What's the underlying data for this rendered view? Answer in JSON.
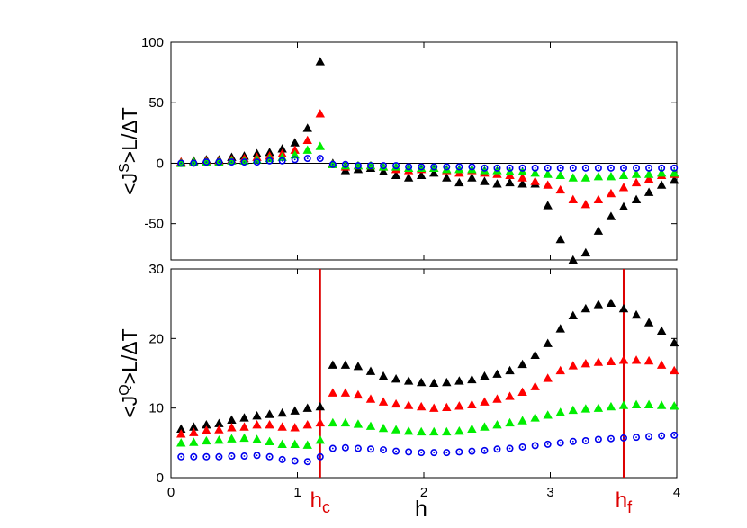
{
  "chart_data": [
    {
      "type": "scatter",
      "panel": "top",
      "ylabel_main": "<J",
      "ylabel_sup": "S",
      "ylabel_rest": ">L/ΔT",
      "xlim": [
        0,
        4
      ],
      "ylim": [
        -80,
        100
      ],
      "yticks": [
        100,
        50,
        0,
        -50
      ],
      "zero_line": true,
      "series": [
        {
          "marker": "triangle",
          "color": "#000000",
          "x": [
            0.08,
            0.18,
            0.28,
            0.38,
            0.48,
            0.58,
            0.68,
            0.78,
            0.88,
            0.98,
            1.08,
            1.18,
            1.28,
            1.38,
            1.48,
            1.58,
            1.68,
            1.78,
            1.88,
            1.98,
            2.08,
            2.18,
            2.28,
            2.38,
            2.48,
            2.58,
            2.68,
            2.78,
            2.88,
            2.98,
            3.08,
            3.18,
            3.28,
            3.38,
            3.48,
            3.58,
            3.68,
            3.78,
            3.88,
            3.98
          ],
          "y": [
            1,
            2,
            3,
            3,
            5,
            6,
            8,
            9,
            12,
            17,
            29,
            84,
            0,
            -6,
            -5,
            -4,
            -7,
            -10,
            -12,
            -10,
            -8,
            -12,
            -16,
            -12,
            -15,
            -17,
            -16,
            -17,
            -17,
            -35,
            -63,
            -80,
            -74,
            -56,
            -44,
            -36,
            -30,
            -24,
            -18,
            -14
          ]
        },
        {
          "marker": "triangle",
          "color": "#ff0000",
          "x": [
            0.08,
            0.18,
            0.28,
            0.38,
            0.48,
            0.58,
            0.68,
            0.78,
            0.88,
            0.98,
            1.08,
            1.18,
            1.28,
            1.38,
            1.48,
            1.58,
            1.68,
            1.78,
            1.88,
            1.98,
            2.08,
            2.18,
            2.28,
            2.38,
            2.48,
            2.58,
            2.68,
            2.78,
            2.88,
            2.98,
            3.08,
            3.18,
            3.28,
            3.38,
            3.48,
            3.58,
            3.68,
            3.78,
            3.88,
            3.98
          ],
          "y": [
            1,
            1,
            2,
            2,
            3,
            4,
            5,
            6,
            8,
            11,
            19,
            41,
            -1,
            -3,
            -2,
            -2,
            -3,
            -5,
            -6,
            -5,
            -4,
            -6,
            -8,
            -6,
            -8,
            -9,
            -10,
            -12,
            -15,
            -18,
            -22,
            -30,
            -34,
            -30,
            -25,
            -20,
            -16,
            -13,
            -10,
            -9
          ]
        },
        {
          "marker": "triangle",
          "color": "#00ee00",
          "x": [
            0.08,
            0.18,
            0.28,
            0.38,
            0.48,
            0.58,
            0.68,
            0.78,
            0.88,
            0.98,
            1.08,
            1.18,
            1.28,
            1.38,
            1.48,
            1.58,
            1.68,
            1.78,
            1.88,
            1.98,
            2.08,
            2.18,
            2.28,
            2.38,
            2.48,
            2.58,
            2.68,
            2.78,
            2.88,
            2.98,
            3.08,
            3.18,
            3.28,
            3.38,
            3.48,
            3.58,
            3.68,
            3.78,
            3.88,
            3.98
          ],
          "y": [
            0,
            1,
            1,
            1,
            2,
            2,
            3,
            4,
            5,
            7,
            11,
            14,
            -1,
            -2,
            -2,
            -2,
            -3,
            -3,
            -4,
            -4,
            -4,
            -5,
            -5,
            -5,
            -6,
            -6,
            -7,
            -7,
            -8,
            -9,
            -10,
            -12,
            -12,
            -11,
            -11,
            -10,
            -9,
            -9,
            -8,
            -8
          ]
        },
        {
          "marker": "circle",
          "color": "#0000ee",
          "x": [
            0.08,
            0.18,
            0.28,
            0.38,
            0.48,
            0.58,
            0.68,
            0.78,
            0.88,
            0.98,
            1.08,
            1.18,
            1.28,
            1.38,
            1.48,
            1.58,
            1.68,
            1.78,
            1.88,
            1.98,
            2.08,
            2.18,
            2.28,
            2.38,
            2.48,
            2.58,
            2.68,
            2.78,
            2.88,
            2.98,
            3.08,
            3.18,
            3.28,
            3.38,
            3.48,
            3.58,
            3.68,
            3.78,
            3.88,
            3.98
          ],
          "y": [
            0,
            0,
            1,
            1,
            1,
            1,
            1,
            2,
            2,
            3,
            4,
            4,
            -1,
            -1,
            -2,
            -2,
            -2,
            -2,
            -3,
            -3,
            -3,
            -3,
            -3,
            -3,
            -4,
            -4,
            -4,
            -4,
            -4,
            -4,
            -4,
            -4,
            -4,
            -4,
            -4,
            -4,
            -4,
            -4,
            -4,
            -4
          ]
        }
      ]
    },
    {
      "type": "scatter",
      "panel": "bottom",
      "ylabel_main": "<J",
      "ylabel_sup": "Q",
      "ylabel_rest": ">L/ΔT",
      "xlabel": "h",
      "xlim": [
        0,
        4
      ],
      "ylim": [
        0,
        30
      ],
      "xticks": [
        0,
        1,
        2,
        3,
        4
      ],
      "yticks": [
        30,
        20,
        10,
        0
      ],
      "vlines": [
        {
          "x": 1.18,
          "label_main": "h",
          "label_sub": "c",
          "color": "#dd0000"
        },
        {
          "x": 3.58,
          "label_main": "h",
          "label_sub": "f",
          "color": "#dd0000"
        }
      ],
      "series": [
        {
          "marker": "triangle",
          "color": "#000000",
          "x": [
            0.08,
            0.18,
            0.28,
            0.38,
            0.48,
            0.58,
            0.68,
            0.78,
            0.88,
            0.98,
            1.08,
            1.18,
            1.28,
            1.38,
            1.48,
            1.58,
            1.68,
            1.78,
            1.88,
            1.98,
            2.08,
            2.18,
            2.28,
            2.38,
            2.48,
            2.58,
            2.68,
            2.78,
            2.88,
            2.98,
            3.08,
            3.18,
            3.28,
            3.38,
            3.48,
            3.58,
            3.68,
            3.78,
            3.88,
            3.98
          ],
          "y": [
            7.0,
            7.3,
            7.6,
            7.8,
            8.3,
            8.6,
            8.9,
            9.1,
            9.3,
            9.6,
            10.0,
            10.2,
            16.2,
            16.2,
            16.0,
            15.3,
            14.6,
            14.2,
            13.9,
            13.7,
            13.6,
            13.7,
            13.9,
            14.1,
            14.6,
            14.9,
            15.4,
            16.3,
            17.6,
            19.3,
            21.4,
            23.3,
            24.3,
            24.9,
            25.1,
            24.3,
            23.4,
            22.3,
            21.1,
            19.4
          ]
        },
        {
          "marker": "triangle",
          "color": "#ff0000",
          "x": [
            0.08,
            0.18,
            0.28,
            0.38,
            0.48,
            0.58,
            0.68,
            0.78,
            0.88,
            0.98,
            1.08,
            1.18,
            1.28,
            1.38,
            1.48,
            1.58,
            1.68,
            1.78,
            1.88,
            1.98,
            2.08,
            2.18,
            2.28,
            2.38,
            2.48,
            2.58,
            2.68,
            2.78,
            2.88,
            2.98,
            3.08,
            3.18,
            3.28,
            3.38,
            3.48,
            3.58,
            3.68,
            3.78,
            3.88,
            3.98
          ],
          "y": [
            6.3,
            6.5,
            6.8,
            6.9,
            7.2,
            7.3,
            7.6,
            7.6,
            7.3,
            7.2,
            7.6,
            7.9,
            12.2,
            12.2,
            11.9,
            11.3,
            10.9,
            10.6,
            10.4,
            10.2,
            10.0,
            10.1,
            10.3,
            10.5,
            10.9,
            11.3,
            11.7,
            12.3,
            13.1,
            14.3,
            15.4,
            16.1,
            16.4,
            16.6,
            16.7,
            16.9,
            16.9,
            16.8,
            16.2,
            15.4
          ]
        },
        {
          "marker": "triangle",
          "color": "#00ee00",
          "x": [
            0.08,
            0.18,
            0.28,
            0.38,
            0.48,
            0.58,
            0.68,
            0.78,
            0.88,
            0.98,
            1.08,
            1.18,
            1.28,
            1.38,
            1.48,
            1.58,
            1.68,
            1.78,
            1.88,
            1.98,
            2.08,
            2.18,
            2.28,
            2.38,
            2.48,
            2.58,
            2.68,
            2.78,
            2.88,
            2.98,
            3.08,
            3.18,
            3.28,
            3.38,
            3.48,
            3.58,
            3.68,
            3.78,
            3.88,
            3.98
          ],
          "y": [
            5.0,
            5.1,
            5.3,
            5.4,
            5.6,
            5.7,
            5.5,
            5.2,
            4.8,
            4.8,
            4.7,
            5.4,
            7.9,
            7.9,
            7.7,
            7.4,
            7.1,
            6.9,
            6.7,
            6.6,
            6.6,
            6.6,
            6.7,
            7.0,
            7.3,
            7.6,
            7.9,
            8.2,
            8.6,
            9.0,
            9.4,
            9.7,
            9.9,
            10.0,
            10.2,
            10.4,
            10.5,
            10.5,
            10.4,
            10.3
          ]
        },
        {
          "marker": "circle",
          "color": "#0000ee",
          "x": [
            0.08,
            0.18,
            0.28,
            0.38,
            0.48,
            0.58,
            0.68,
            0.78,
            0.88,
            0.98,
            1.08,
            1.18,
            1.28,
            1.38,
            1.48,
            1.58,
            1.68,
            1.78,
            1.88,
            1.98,
            2.08,
            2.18,
            2.28,
            2.38,
            2.48,
            2.58,
            2.68,
            2.78,
            2.88,
            2.98,
            3.08,
            3.18,
            3.28,
            3.38,
            3.48,
            3.58,
            3.68,
            3.78,
            3.88,
            3.98
          ],
          "y": [
            3.0,
            3.0,
            3.0,
            3.0,
            3.1,
            3.1,
            3.2,
            3.0,
            2.6,
            2.4,
            2.3,
            3.0,
            4.2,
            4.3,
            4.2,
            4.1,
            4.0,
            3.8,
            3.7,
            3.6,
            3.6,
            3.6,
            3.7,
            3.8,
            3.9,
            4.1,
            4.2,
            4.4,
            4.6,
            4.8,
            5.0,
            5.2,
            5.3,
            5.5,
            5.6,
            5.7,
            5.8,
            5.9,
            6.0,
            6.1
          ]
        }
      ]
    }
  ]
}
